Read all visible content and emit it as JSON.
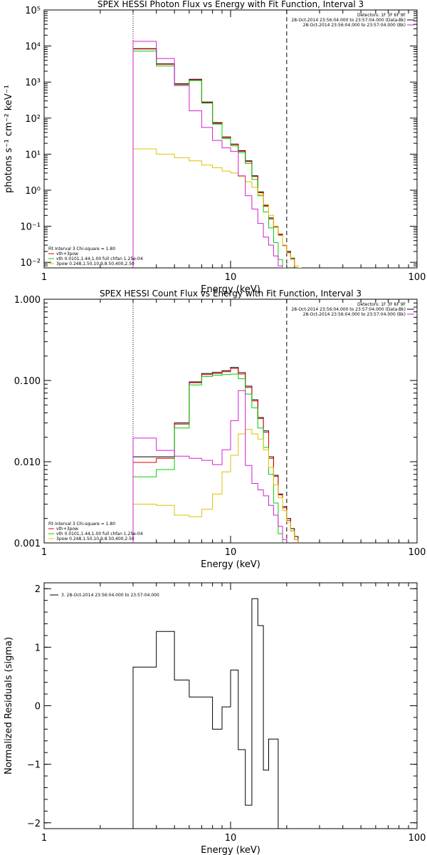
{
  "chart_data": [
    {
      "type": "line",
      "title": "SPEX HESSI Photon Flux vs Energy with Fit Function, Interval 3",
      "xlabel": "Energy (keV)",
      "ylabel": "photons s⁻¹ cm⁻² keV⁻¹",
      "xscale": "log",
      "yscale": "log",
      "xlim": [
        1,
        100
      ],
      "ylim": [
        0.007,
        100000
      ],
      "xticks": [
        1,
        10,
        100
      ],
      "xtick_labels": [
        "1",
        "10",
        "100"
      ],
      "yticks": [
        0.01,
        0.1,
        1,
        10,
        100,
        1000,
        10000,
        100000
      ],
      "ytick_labels": [
        "10⁻²",
        "10⁻¹",
        "10⁰",
        "10¹",
        "10²",
        "10³",
        "10⁴",
        "10⁵"
      ],
      "vlines": [
        {
          "x": 3,
          "style": "dotted"
        },
        {
          "x": 20,
          "style": "dashed"
        }
      ],
      "legend_top_right": [
        {
          "text": "Detectors: 1F 3F 6F 9F",
          "color": "#000000"
        },
        {
          "text": "28-Oct-2014 23:56:04.000 to 23:57:04.000 (Data-Bk)",
          "color": "#000000"
        },
        {
          "text": "28-Oct-2014 23:56:04.000 to 23:57:04.000 (Bk)",
          "color": "#d020d0"
        }
      ],
      "legend_bottom_left": [
        {
          "text": "Fit Interval 3   Chi-square = 1.80",
          "color": "#000000"
        },
        {
          "text": "vth+3pow",
          "color": "#e00000"
        },
        {
          "text": "vth 0.0101,1.44,1.00  full chfan 1.25e-04",
          "color": "#00d000"
        },
        {
          "text": "3pow 0.248,1.50,10.9,8.50,400,2.50",
          "color": "#e0c000"
        }
      ],
      "edges": [
        3,
        4,
        5,
        6,
        7,
        8,
        9,
        10,
        11,
        12,
        13,
        14,
        15,
        16,
        17,
        18,
        19,
        20,
        21,
        22,
        23,
        24,
        25
      ],
      "series": [
        {
          "color": "#000000",
          "values": [
            8500,
            3200,
            900,
            1200,
            280,
            75,
            30,
            19,
            12.5,
            6.5,
            2.5,
            0.9,
            0.38,
            0.17,
            0.1,
            0.06,
            0.03,
            0.02,
            0.013
          ]
        },
        {
          "color": "#e00000",
          "values": [
            8300,
            3100,
            880,
            1150,
            270,
            72,
            29,
            18.5,
            12,
            6.2,
            2.4,
            0.85,
            0.36,
            0.16,
            0.095,
            0.057,
            0.029,
            0.019,
            0.012
          ]
        },
        {
          "color": "#00d000",
          "values": [
            7200,
            2800,
            850,
            1100,
            260,
            68,
            27,
            17,
            11,
            5.5,
            2.0,
            0.7,
            0.25,
            0.09,
            0.035,
            0.012,
            0.007
          ]
        },
        {
          "color": "#e0c000",
          "values": [
            14,
            10,
            8,
            6.5,
            5,
            4.2,
            3.4,
            3.0,
            2.4,
            1.7,
            1.2,
            0.75,
            0.4,
            0.2,
            0.1,
            0.055,
            0.03,
            0.018,
            0.012,
            0.008,
            0.006
          ]
        },
        {
          "color": "#d020d0",
          "values": [
            13500,
            4500,
            800,
            160,
            55,
            24,
            15,
            12,
            2.5,
            0.7,
            0.3,
            0.12,
            0.05,
            0.03,
            0.015,
            0.008
          ]
        }
      ]
    },
    {
      "type": "line",
      "title": "SPEX HESSI Count Flux vs Energy with Fit Function, Interval 3",
      "xlabel": "Energy (keV)",
      "ylabel": "",
      "xscale": "log",
      "yscale": "log",
      "xlim": [
        1,
        100
      ],
      "ylim": [
        0.001,
        1
      ],
      "xticks": [
        1,
        10,
        100
      ],
      "xtick_labels": [
        "1",
        "10",
        "100"
      ],
      "yticks": [
        0.001,
        0.01,
        0.1,
        1
      ],
      "ytick_labels": [
        "0.001",
        "0.010",
        "0.100",
        "1.000"
      ],
      "vlines": [
        {
          "x": 3,
          "style": "dotted"
        },
        {
          "x": 20,
          "style": "dashed"
        }
      ],
      "legend_top_right": [
        {
          "text": "Detectors: 1F 3F 6F 9F",
          "color": "#000000"
        },
        {
          "text": "28-Oct-2014 23:56:04.000 to 23:57:04.000 (Data-Bk)",
          "color": "#000000"
        },
        {
          "text": "28-Oct-2014 23:56:04.000 to 23:57:04.000 (Bk)",
          "color": "#d020d0"
        }
      ],
      "legend_bottom_left": [
        {
          "text": "Fit Interval 3   Chi-square = 1.80",
          "color": "#000000"
        },
        {
          "text": "vth+3pow",
          "color": "#e00000"
        },
        {
          "text": "vth 0.0101,1.44,1.00  full chfan 1.25e-04",
          "color": "#00d000"
        },
        {
          "text": "3pow 0.248,1.50,10.9,8.50,400,2.50",
          "color": "#e0c000"
        }
      ],
      "edges": [
        3,
        4,
        5,
        6,
        7,
        8,
        9,
        10,
        11,
        12,
        13,
        14,
        15,
        16,
        17,
        18,
        19,
        20,
        21,
        22,
        23,
        24,
        25
      ],
      "series": [
        {
          "color": "#000000",
          "values": [
            0.0115,
            0.0115,
            0.03,
            0.096,
            0.122,
            0.126,
            0.132,
            0.145,
            0.125,
            0.085,
            0.058,
            0.035,
            0.024,
            0.0115,
            0.0068,
            0.004,
            0.0028,
            0.002,
            0.0015,
            0.0012
          ]
        },
        {
          "color": "#e00000",
          "values": [
            0.0098,
            0.011,
            0.029,
            0.094,
            0.118,
            0.122,
            0.128,
            0.14,
            0.12,
            0.082,
            0.056,
            0.034,
            0.023,
            0.011,
            0.0066,
            0.0039,
            0.0027,
            0.0019,
            0.0014,
            0.0011
          ]
        },
        {
          "color": "#00d000",
          "values": [
            0.0065,
            0.008,
            0.026,
            0.088,
            0.112,
            0.116,
            0.118,
            0.12,
            0.105,
            0.068,
            0.046,
            0.026,
            0.015,
            0.007,
            0.0031,
            0.0013
          ]
        },
        {
          "color": "#e0c000",
          "values": [
            0.003,
            0.0029,
            0.0022,
            0.0021,
            0.0026,
            0.004,
            0.0075,
            0.012,
            0.022,
            0.025,
            0.022,
            0.019,
            0.014,
            0.0085,
            0.0052,
            0.0036,
            0.0025,
            0.0018,
            0.0014,
            0.0011
          ]
        },
        {
          "color": "#d020d0",
          "values": [
            0.0195,
            0.0138,
            0.0117,
            0.011,
            0.0104,
            0.0092,
            0.014,
            0.032,
            0.075,
            0.009,
            0.0054,
            0.0045,
            0.0038,
            0.0029,
            0.0022,
            0.0016,
            0.0011
          ]
        }
      ]
    },
    {
      "type": "line",
      "title": "",
      "xlabel": "Energy (keV)",
      "ylabel": "Normalized Residuals (sigma)",
      "xscale": "log",
      "yscale": "linear",
      "xlim": [
        1,
        100
      ],
      "ylim": [
        -2.1,
        2.1
      ],
      "xticks": [
        1,
        10,
        100
      ],
      "xtick_labels": [
        "1",
        "10",
        "100"
      ],
      "yticks": [
        -2,
        -1,
        0,
        1,
        2
      ],
      "ytick_labels": [
        "−2",
        "−1",
        "0",
        "1",
        "2"
      ],
      "legend_top_left": [
        {
          "text": "3. 28-Oct-2014 23:56:04.000 to 23:57:04.000",
          "color": "#000000"
        }
      ],
      "edges": [
        3,
        4,
        5,
        6,
        8,
        9,
        10,
        11,
        12,
        13,
        14,
        15,
        16,
        18,
        20
      ],
      "series": [
        {
          "color": "#000000",
          "values": [
            0.66,
            1.27,
            0.44,
            0.15,
            -0.4,
            -0.02,
            0.61,
            -0.75,
            -1.7,
            1.83,
            1.37,
            -1.1,
            -0.57
          ]
        }
      ]
    }
  ]
}
